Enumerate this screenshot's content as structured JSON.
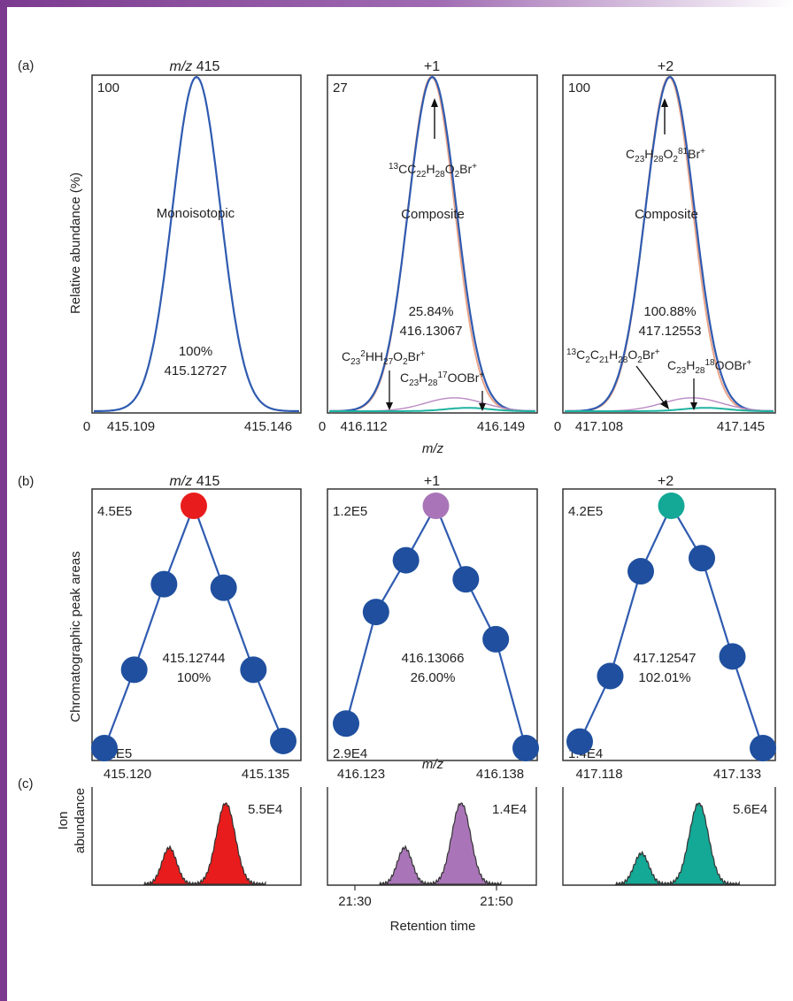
{
  "colors": {
    "line": "#2f5bb0",
    "orange": "#e8a48a",
    "violet": "#b98ac4",
    "teal": "#1fb3a0",
    "red": "#e81c1c",
    "purple": "#a975b8",
    "green": "#14a896",
    "blue": "#1f4f9e",
    "frame": "#333333",
    "bar": "#7b3a8f"
  },
  "shared_labels": {
    "a_ylabel": "Relative abundance (%)",
    "a_xlabel": "m/z",
    "b_ylabel": "Chromatographic peak areas",
    "b_xlabel": "m/z",
    "c_ylabel_1": "Ion",
    "c_ylabel_2": "abundance",
    "c_xlabel": "Retention time"
  },
  "chart_data": [
    {
      "panel": "a",
      "id": "a1",
      "type": "line",
      "title_italic": "m/z",
      "title_rest": " 415",
      "ymax_label": "100",
      "zero_label": "0",
      "x_ticks": [
        "415.109",
        "415.146"
      ],
      "series": [
        {
          "peak": 100
        }
      ],
      "annotations": {
        "name": "Monoisotopic",
        "percent": "100%",
        "mass": "415.12727"
      }
    },
    {
      "panel": "a",
      "id": "a2",
      "type": "line",
      "title_rest": "+1",
      "ymax_label": "27",
      "zero_label": "0",
      "x_ticks": [
        "416.112",
        "416.149"
      ],
      "series": [
        {
          "peak": 100
        },
        {
          "peak": 4
        },
        {
          "peak": 1
        }
      ],
      "annotations": {
        "formula_main": "13CC22H28O2Br+",
        "name": "Composite",
        "percent": "25.84%",
        "mass": "416.13067",
        "formula_left": "C23 2HH27O2Br+",
        "formula_right": "C23H28 17OOBr+"
      }
    },
    {
      "panel": "a",
      "id": "a3",
      "type": "line",
      "title_rest": "+2",
      "ymax_label": "100",
      "zero_label": "0",
      "x_ticks": [
        "417.108",
        "417.145"
      ],
      "series": [
        {
          "peak": 100
        },
        {
          "peak": 4
        },
        {
          "peak": 1
        }
      ],
      "annotations": {
        "formula_main": "C23H28O2 81Br+",
        "name": "Composite",
        "percent": "100.88%",
        "mass": "417.12553",
        "formula_left": "13C2C21H28O2Br+",
        "formula_right": "C23H28 18OOBr+"
      }
    },
    {
      "panel": "b",
      "id": "b1",
      "type": "scatter",
      "title_italic": "m/z",
      "title_rest": " 415",
      "ymax_label": "4.5E5",
      "ymin_label": "1.1E5",
      "x_ticks": [
        "415.120",
        "415.135"
      ],
      "mass": "415.12744",
      "percent": "100%",
      "points": [
        {
          "x": 415.12,
          "y": 1.1
        },
        {
          "x": 415.1225,
          "y": 2.2
        },
        {
          "x": 415.125,
          "y": 3.4
        },
        {
          "x": 415.1275,
          "y": 4.5
        },
        {
          "x": 415.13,
          "y": 3.35
        },
        {
          "x": 415.1325,
          "y": 2.2
        },
        {
          "x": 415.135,
          "y": 1.2
        }
      ],
      "highlight_index": 3
    },
    {
      "panel": "b",
      "id": "b2",
      "type": "scatter",
      "title_rest": "+1",
      "ymax_label": "1.2E5",
      "ymin_label": "2.9E4",
      "x_ticks": [
        "416.123",
        "416.138"
      ],
      "mass": "416.13066",
      "percent": "26.00%",
      "points": [
        {
          "x": 416.123,
          "y": 0.33
        },
        {
          "x": 416.1255,
          "y": 0.74
        },
        {
          "x": 416.128,
          "y": 0.93
        },
        {
          "x": 416.1305,
          "y": 1.13
        },
        {
          "x": 416.133,
          "y": 0.86
        },
        {
          "x": 416.1355,
          "y": 0.64
        },
        {
          "x": 416.138,
          "y": 0.24
        }
      ],
      "highlight_index": 3
    },
    {
      "panel": "b",
      "id": "b3",
      "type": "scatter",
      "title_rest": "+2",
      "ymax_label": "4.2E5",
      "ymin_label": "1.4E4",
      "x_ticks": [
        "417.118",
        "417.133"
      ],
      "mass": "417.12547",
      "percent": "102.01%",
      "points": [
        {
          "x": 417.118,
          "y": 0.6
        },
        {
          "x": 417.1205,
          "y": 1.6
        },
        {
          "x": 417.123,
          "y": 3.2
        },
        {
          "x": 417.1255,
          "y": 4.2
        },
        {
          "x": 417.128,
          "y": 3.4
        },
        {
          "x": 417.1305,
          "y": 1.9
        },
        {
          "x": 417.133,
          "y": 0.5
        }
      ],
      "highlight_index": 3
    },
    {
      "panel": "c",
      "id": "c1",
      "type": "area",
      "max_label": "5.5E4",
      "x_ticks": [],
      "peaks": [
        {
          "rt": 0.37,
          "rel": 0.45
        },
        {
          "rt": 0.64,
          "rel": 1.0
        }
      ]
    },
    {
      "panel": "c",
      "id": "c2",
      "type": "area",
      "max_label": "1.4E4",
      "x_ticks": [
        "21:30",
        "21:50"
      ],
      "peaks": [
        {
          "rt": 0.37,
          "rel": 0.45
        },
        {
          "rt": 0.64,
          "rel": 1.0
        }
      ]
    },
    {
      "panel": "c",
      "id": "c3",
      "type": "area",
      "max_label": "5.6E4",
      "x_ticks": [],
      "peaks": [
        {
          "rt": 0.37,
          "rel": 0.38
        },
        {
          "rt": 0.64,
          "rel": 1.0
        }
      ]
    }
  ],
  "panel_letters": {
    "a": "(a)",
    "b": "(b)",
    "c": "(c)"
  }
}
